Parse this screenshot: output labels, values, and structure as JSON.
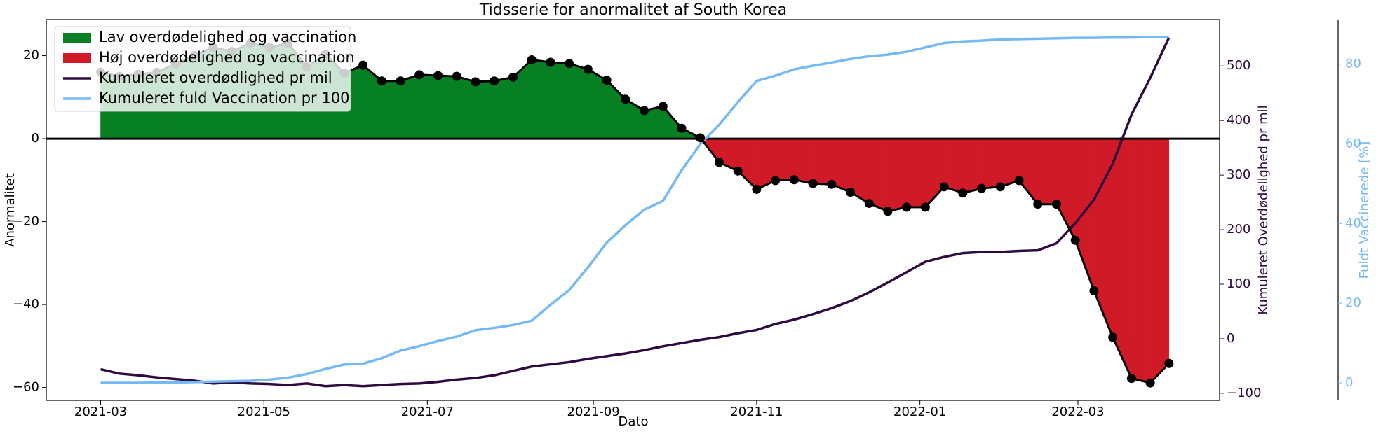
{
  "chart_data": {
    "type": "anomaly",
    "title": "Tidsserie for anormalitet af South Korea",
    "xlabel": "Dato",
    "ylabel": "Anormalitet",
    "y2label": "Kumuleret Overdødelighed pr mil",
    "y3label": "Fuldt Vaccinerede [%]",
    "xlim": [
      -2.9,
      59.7
    ],
    "xticks": [
      {
        "value": 0,
        "label": "2021-03"
      },
      {
        "value": 8.71,
        "label": "2021-05"
      },
      {
        "value": 17.43,
        "label": "2021-07"
      },
      {
        "value": 26.29,
        "label": "2021-09"
      },
      {
        "value": 35,
        "label": "2021-11"
      },
      {
        "value": 43.71,
        "label": "2022-01"
      },
      {
        "value": 52.14,
        "label": "2022-03"
      }
    ],
    "ylim": [
      -63.1,
      28.7
    ],
    "yticks": [
      {
        "value": -60,
        "label": "−60"
      },
      {
        "value": -40,
        "label": "−40"
      },
      {
        "value": -20,
        "label": "−20"
      },
      0,
      20
    ],
    "y2lim": [
      -113,
      585
    ],
    "y2ticks": [
      {
        "value": -100,
        "label": "−100"
      },
      0,
      100,
      200,
      300,
      400,
      500
    ],
    "y2color": "#2e0a40",
    "y3lim": [
      -4.4,
      91.2
    ],
    "y3ticks": [
      0,
      20,
      40,
      60,
      80
    ],
    "y3color": "#74b9f5",
    "fills": [
      {
        "name": "Lav overdødelighed og vaccination",
        "color": "#077f23"
      },
      {
        "name": "Høj overdødelighed og vaccination",
        "color": "#d11a27"
      }
    ],
    "anomaly": {
      "color": "#000000",
      "values": [
        16,
        15,
        15.5,
        16,
        18,
        20,
        22,
        21,
        23,
        22,
        23,
        17.3,
        20.3,
        15.8,
        17.7,
        13.9,
        13.9,
        15.4,
        15.2,
        15.0,
        13.7,
        13.9,
        14.8,
        19.0,
        18.4,
        18.1,
        16.7,
        14.1,
        9.5,
        6.8,
        7.8,
        2.5,
        0.2,
        -5.7,
        -7.8,
        -12.2,
        -10.1,
        -9.9,
        -10.8,
        -11.0,
        -12.9,
        -15.6,
        -17.5,
        -16.5,
        -16.5,
        -11.6,
        -13.1,
        -12.0,
        -11.6,
        -10.1,
        -15.8,
        -15.8,
        -24.5,
        -36.7,
        -47.9,
        -57.8,
        -58.9,
        -54.2
      ]
    },
    "series": [
      {
        "name": "Kumuleret overdødlighed pr mil",
        "color": "#2e0a40",
        "axis": "y2",
        "values": [
          -56,
          -64,
          -67,
          -71,
          -74,
          -77,
          -82,
          -80,
          -82,
          -83,
          -85,
          -82,
          -87,
          -85,
          -87,
          -85,
          -83,
          -82,
          -79,
          -75,
          -72,
          -67,
          -59,
          -51,
          -47,
          -43,
          -37,
          -32,
          -27,
          -21,
          -14,
          -8,
          -2,
          3,
          10,
          16,
          27,
          35,
          45,
          56,
          69,
          85,
          103,
          122,
          141,
          150,
          157,
          159,
          159,
          161,
          162,
          175,
          212,
          255,
          321,
          411,
          478,
          552
        ]
      },
      {
        "name": "Kumuleret fuld Vaccination pr 100",
        "color": "#74b9f5",
        "axis": "y3",
        "values": [
          0,
          0,
          0,
          0.1,
          0.1,
          0.2,
          0.3,
          0.4,
          0.5,
          0.8,
          1.3,
          2.2,
          3.5,
          4.6,
          4.8,
          6.2,
          8.1,
          9.2,
          10.5,
          11.6,
          13.2,
          13.8,
          14.5,
          15.6,
          19.6,
          23.3,
          29,
          35.2,
          39.6,
          43.5,
          45.7,
          53.4,
          60,
          64.8,
          70.5,
          75.8,
          77.1,
          78.7,
          79.6,
          80.4,
          81.3,
          82,
          82.4,
          83.1,
          84.2,
          85.3,
          85.7,
          85.9,
          86.2,
          86.3,
          86.4,
          86.5,
          86.6,
          86.6,
          86.7,
          86.7,
          86.8,
          86.8
        ]
      }
    ],
    "legend": "upper left"
  }
}
